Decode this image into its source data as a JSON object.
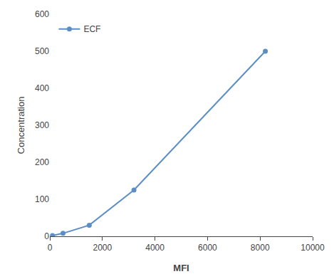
{
  "chart_data": {
    "type": "line",
    "x": [
      100,
      500,
      1500,
      3200,
      8200
    ],
    "series": [
      {
        "name": "ECF",
        "color": "#5B8EC4",
        "values": [
          2,
          8,
          30,
          125,
          500
        ],
        "marker": "circle",
        "line_style": "solid"
      }
    ],
    "xlabel": "MFI",
    "ylabel": "Concentration",
    "xlim": [
      0,
      10000
    ],
    "ylim": [
      0,
      600
    ],
    "xticks": [
      0,
      2000,
      4000,
      6000,
      8000,
      10000
    ],
    "yticks": [
      0,
      100,
      200,
      300,
      400,
      500,
      600
    ],
    "grid": false,
    "legend": "upper left"
  }
}
